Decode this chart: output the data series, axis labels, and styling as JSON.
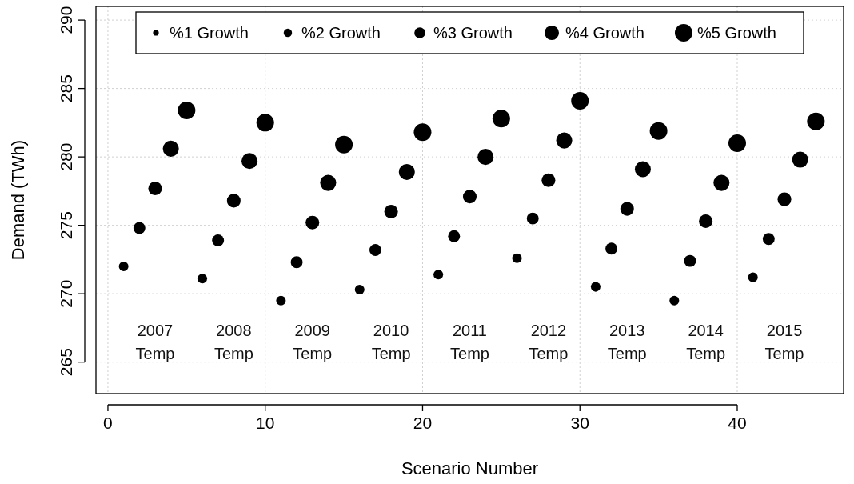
{
  "chart_data": {
    "type": "bubble",
    "xlabel": "Scenario Number",
    "ylabel": "Demand (TWh)",
    "xlim": [
      -0.76,
      46.76
    ],
    "xticks": [
      0,
      10,
      20,
      30,
      40
    ],
    "ylim": [
      262.7,
      291
    ],
    "yticks": [
      265,
      270,
      275,
      280,
      285,
      290
    ],
    "grid": true,
    "legend": "top",
    "marker": "circle",
    "series": [
      {
        "name": "%1 Growth",
        "color": "#000000",
        "x": [
          1,
          6,
          11,
          16,
          21,
          26,
          31,
          36,
          41
        ],
        "values": [
          272.0,
          271.1,
          269.5,
          270.3,
          271.4,
          272.6,
          270.5,
          269.5,
          271.2
        ],
        "sizes": [
          0.3,
          0.3,
          0.3,
          0.3,
          0.3,
          0.3,
          0.3,
          0.3,
          0.3
        ]
      },
      {
        "name": "%2 Growth",
        "color": "#000000",
        "x": [
          2,
          7,
          12,
          17,
          22,
          27,
          32,
          37,
          42
        ],
        "values": [
          274.8,
          273.9,
          272.3,
          273.2,
          274.2,
          275.5,
          273.3,
          272.4,
          274.0
        ],
        "sizes": [
          0.46,
          0.46,
          0.46,
          0.46,
          0.46,
          0.46,
          0.46,
          0.46,
          0.46
        ]
      },
      {
        "name": "%3 Growth",
        "color": "#000000",
        "x": [
          3,
          8,
          13,
          18,
          23,
          28,
          33,
          38,
          43
        ],
        "values": [
          277.7,
          276.8,
          275.2,
          276.0,
          277.1,
          278.3,
          276.2,
          275.3,
          276.9
        ],
        "sizes": [
          0.6,
          0.6,
          0.6,
          0.6,
          0.6,
          0.6,
          0.6,
          0.6,
          0.6
        ]
      },
      {
        "name": "%4 Growth",
        "color": "#000000",
        "x": [
          4,
          9,
          14,
          19,
          24,
          29,
          34,
          39,
          44
        ],
        "values": [
          280.6,
          279.7,
          278.1,
          278.9,
          280.0,
          281.2,
          279.1,
          278.1,
          279.8
        ],
        "sizes": [
          0.83,
          0.83,
          0.83,
          0.83,
          0.83,
          0.83,
          0.83,
          0.83,
          0.83
        ]
      },
      {
        "name": "%5 Growth",
        "color": "#000000",
        "x": [
          5,
          10,
          15,
          20,
          25,
          30,
          35,
          40,
          45
        ],
        "values": [
          283.4,
          282.5,
          280.9,
          281.8,
          282.8,
          284.1,
          281.9,
          281.0,
          282.6
        ],
        "sizes": [
          1,
          1,
          1,
          1,
          1,
          1,
          1,
          1,
          1
        ]
      }
    ],
    "annotations": [
      "2007\nTemp",
      "2008\nTemp",
      "2009\nTemp",
      "2010\nTemp",
      "2011\nTemp",
      "2012\nTemp",
      "2013\nTemp",
      "2014\nTemp",
      "2015\nTemp"
    ]
  }
}
